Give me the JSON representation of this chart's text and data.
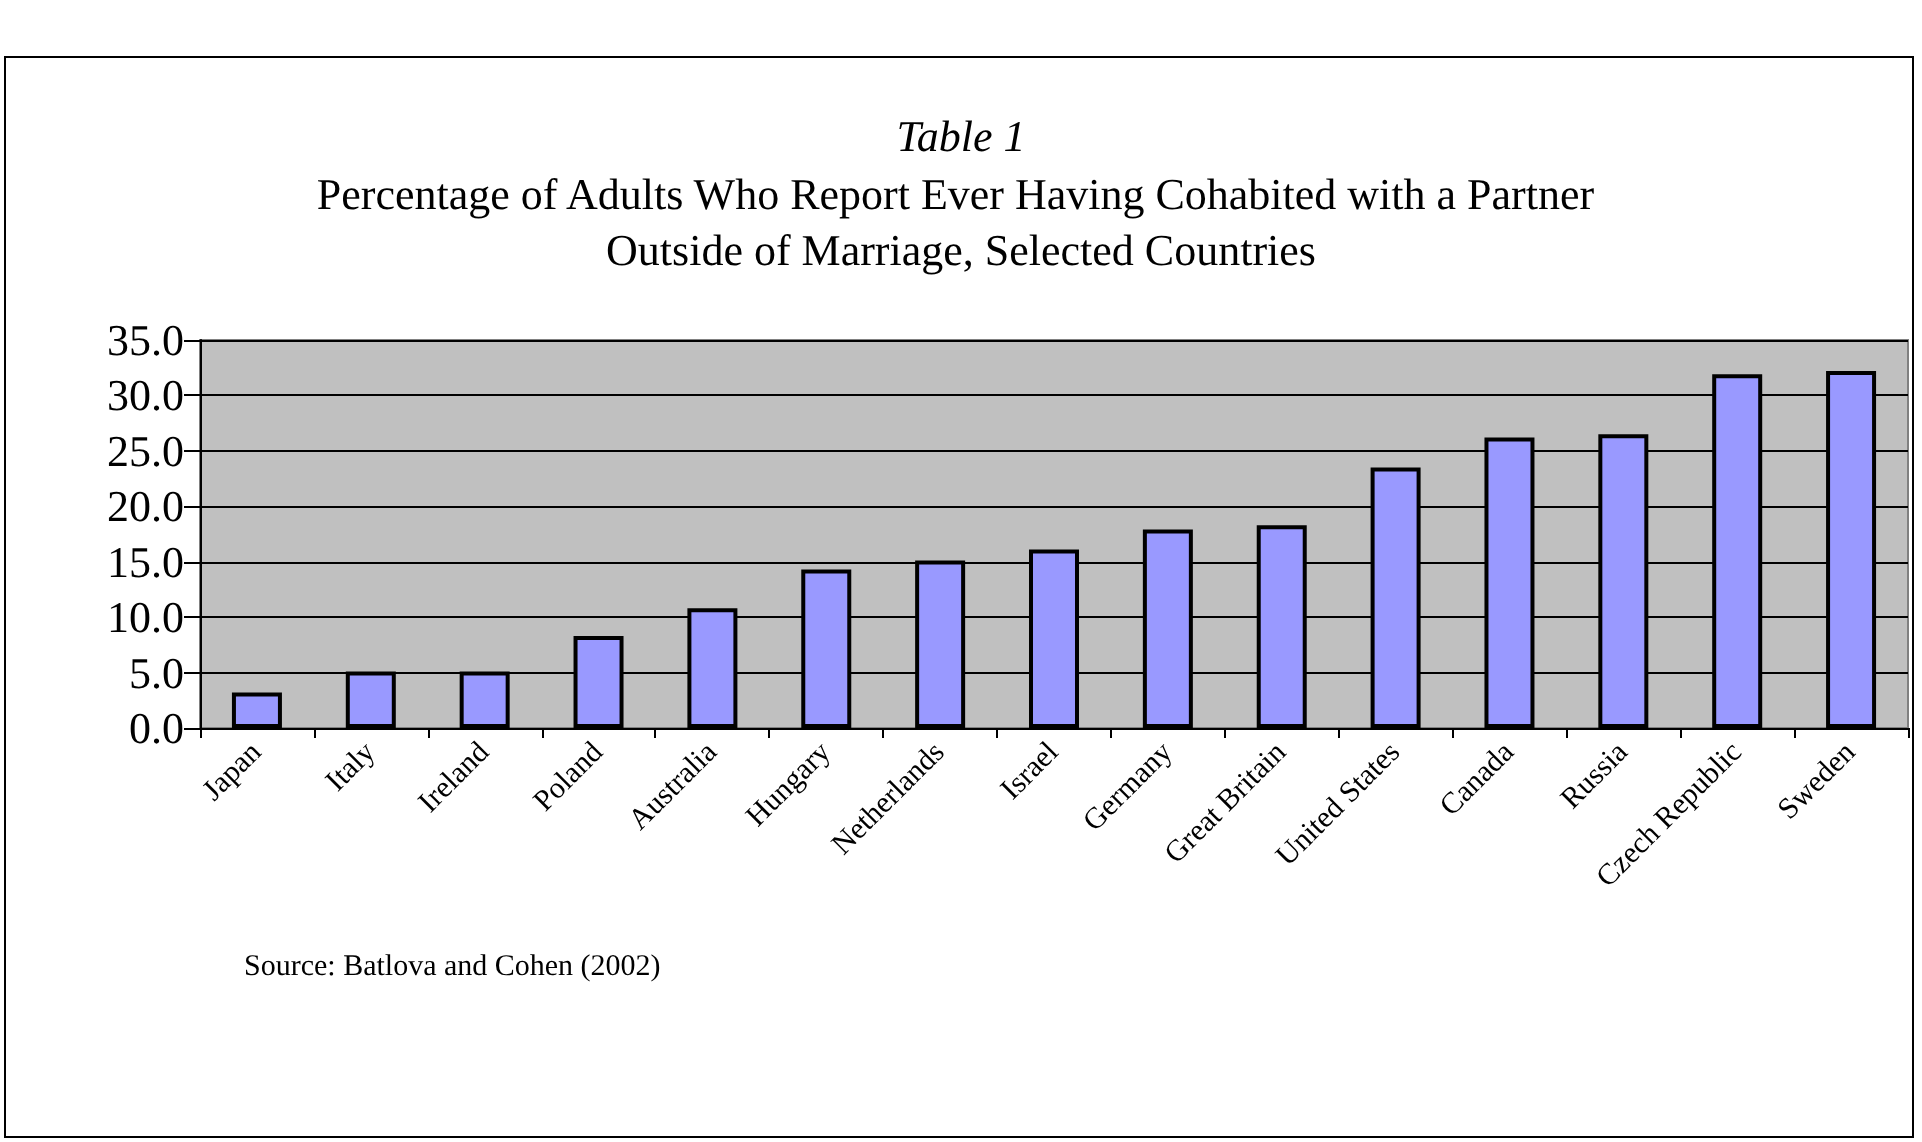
{
  "chart_data": {
    "type": "bar",
    "title": "Table 1",
    "subtitle": "Percentage of Adults Who Report Ever Having Cohabited with a Partner Outside of Marriage, Selected Countries",
    "categories": [
      "Japan",
      "Italy",
      "Ireland",
      "Poland",
      "Australia",
      "Hungary",
      "Netherlands",
      "Israel",
      "Germany",
      "Great Britain",
      "United States",
      "Canada",
      "Russia",
      "Czech Republic",
      "Sweden"
    ],
    "values": [
      3.2,
      5.1,
      5.1,
      8.3,
      10.8,
      14.3,
      15.1,
      16.1,
      17.9,
      18.3,
      23.5,
      26.2,
      26.5,
      31.9,
      32.2
    ],
    "color": "#9999ff",
    "ylim": [
      0,
      35
    ],
    "yticks": [
      {
        "value": 0,
        "label": "0.0"
      },
      {
        "value": 5,
        "label": "5.0"
      },
      {
        "value": 10,
        "label": "10.0"
      },
      {
        "value": 15,
        "label": "15.0"
      },
      {
        "value": 20,
        "label": "20.0"
      },
      {
        "value": 25,
        "label": "25.0"
      },
      {
        "value": 30,
        "label": "30.0"
      },
      {
        "value": 35,
        "label": "35.0"
      }
    ],
    "grid": "y",
    "annotations": [
      "Source: Batlova and Cohen (2002)"
    ]
  }
}
